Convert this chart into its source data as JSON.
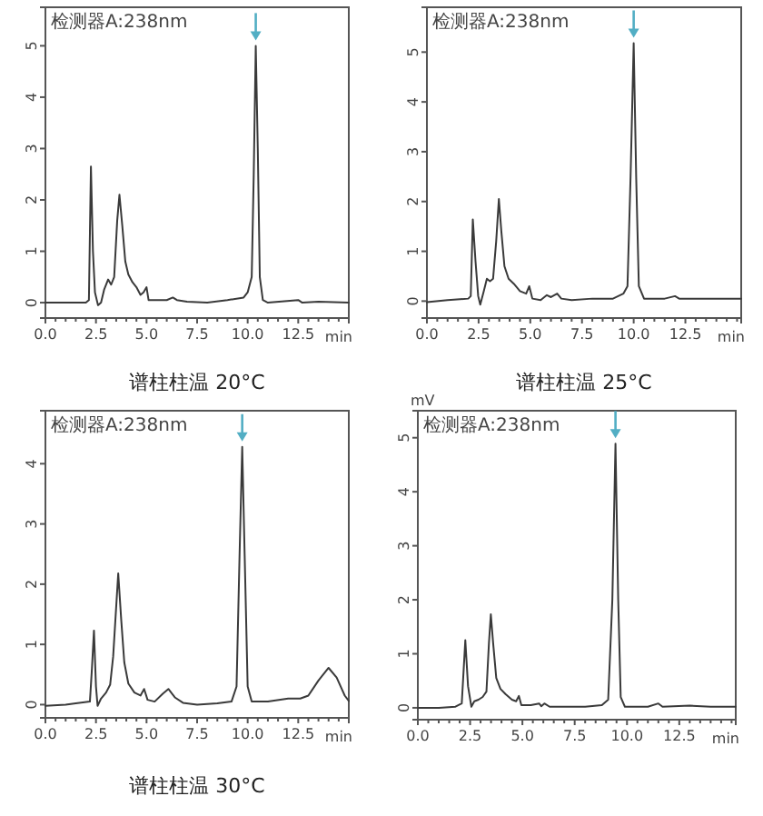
{
  "chart_data": [
    {
      "type": "line",
      "title": "谱柱柱温 20°C",
      "annotations": [
        "检测器A:238nm"
      ],
      "xlabel": "min",
      "color": "#3a3a3a",
      "xlim": [
        0,
        15
      ],
      "ylim": [
        -0.3,
        5.75
      ],
      "xticks": [
        {
          "value": 0,
          "label": "0.0"
        },
        {
          "value": 0.5,
          "label": null
        },
        {
          "value": 1,
          "label": null
        },
        {
          "value": 1.5,
          "label": null
        },
        {
          "value": 2,
          "label": null
        },
        2.5,
        {
          "value": 3,
          "label": null
        },
        {
          "value": 3.5,
          "label": null
        },
        {
          "value": 4,
          "label": null
        },
        {
          "value": 4.5,
          "label": null
        },
        {
          "value": 5,
          "label": "5.0"
        },
        {
          "value": 5.5,
          "label": null
        },
        {
          "value": 6,
          "label": null
        },
        {
          "value": 6.5,
          "label": null
        },
        {
          "value": 7,
          "label": null
        },
        7.5,
        {
          "value": 8,
          "label": null
        },
        {
          "value": 8.5,
          "label": null
        },
        {
          "value": 9,
          "label": null
        },
        {
          "value": 9.5,
          "label": null
        },
        {
          "value": 10,
          "label": "10.0"
        },
        {
          "value": 10.5,
          "label": null
        },
        {
          "value": 11,
          "label": null
        },
        {
          "value": 11.5,
          "label": null
        },
        {
          "value": 12,
          "label": null
        },
        12.5,
        {
          "value": 13,
          "label": null
        },
        {
          "value": 13.5,
          "label": null
        },
        {
          "value": 14,
          "label": null
        },
        {
          "value": 14.5,
          "label": null
        }
      ],
      "yticks": [
        0,
        1,
        2,
        3,
        4,
        5
      ],
      "x": [
        0,
        1,
        2,
        2.15,
        2.25,
        2.35,
        2.45,
        2.6,
        2.75,
        2.9,
        3.1,
        3.25,
        3.4,
        3.55,
        3.66,
        3.8,
        3.95,
        4.1,
        4.3,
        4.5,
        4.7,
        4.85,
        5,
        5.1,
        5.3,
        6,
        6.3,
        6.5,
        7,
        8,
        9,
        9.8,
        10,
        10.2,
        10.3,
        10.4,
        10.5,
        10.6,
        10.75,
        11,
        12.5,
        12.7,
        13.5,
        15
      ],
      "values": [
        0,
        0,
        0,
        0.05,
        2.65,
        1,
        0.2,
        -0.05,
        0,
        0.25,
        0.45,
        0.35,
        0.5,
        1.6,
        2.1,
        1.5,
        0.8,
        0.55,
        0.4,
        0.3,
        0.15,
        0.2,
        0.3,
        0.05,
        0.05,
        0.05,
        0.1,
        0.05,
        0.02,
        0,
        0.05,
        0.1,
        0.2,
        0.5,
        2.5,
        5,
        3,
        0.5,
        0.05,
        0,
        0.05,
        0,
        0.02,
        0
      ]
    },
    {
      "type": "line",
      "title": "谱柱柱温 25°C",
      "annotations": [
        "检测器A:238nm"
      ],
      "xlabel": "min",
      "color": "#3a3a3a",
      "xlim": [
        0,
        15.2
      ],
      "ylim": [
        -0.34,
        5.9
      ],
      "xticks": [
        {
          "value": 0,
          "label": "0.0"
        },
        {
          "value": 0.5,
          "label": null
        },
        {
          "value": 1,
          "label": null
        },
        {
          "value": 1.5,
          "label": null
        },
        {
          "value": 2,
          "label": null
        },
        2.5,
        {
          "value": 3,
          "label": null
        },
        {
          "value": 3.5,
          "label": null
        },
        {
          "value": 4,
          "label": null
        },
        {
          "value": 4.5,
          "label": null
        },
        {
          "value": 5,
          "label": "5.0"
        },
        {
          "value": 5.5,
          "label": null
        },
        {
          "value": 6,
          "label": null
        },
        {
          "value": 6.5,
          "label": null
        },
        {
          "value": 7,
          "label": null
        },
        7.5,
        {
          "value": 8,
          "label": null
        },
        {
          "value": 8.5,
          "label": null
        },
        {
          "value": 9,
          "label": null
        },
        {
          "value": 9.5,
          "label": null
        },
        {
          "value": 10,
          "label": "10.0"
        },
        {
          "value": 10.5,
          "label": null
        },
        {
          "value": 11,
          "label": null
        },
        {
          "value": 11.5,
          "label": null
        },
        {
          "value": 12,
          "label": null
        },
        12.5,
        {
          "value": 13,
          "label": null
        },
        {
          "value": 13.5,
          "label": null
        },
        {
          "value": 14,
          "label": null
        },
        {
          "value": 14.5,
          "label": null
        },
        {
          "value": 15,
          "label": null
        }
      ],
      "yticks": [
        0,
        1,
        2,
        3,
        4,
        5
      ],
      "x": [
        0,
        1,
        2,
        2.12,
        2.22,
        2.35,
        2.48,
        2.58,
        2.75,
        2.9,
        3.05,
        3.2,
        3.35,
        3.48,
        3.6,
        3.75,
        3.95,
        4.2,
        4.5,
        4.8,
        4.95,
        5.1,
        5.5,
        5.8,
        6,
        6.3,
        6.5,
        7,
        8,
        9,
        9.5,
        9.7,
        9.85,
        10,
        10.12,
        10.25,
        10.5,
        11.5,
        12,
        12.2,
        14,
        15.2
      ],
      "values": [
        -0.02,
        0.02,
        0.05,
        0.1,
        1.64,
        0.8,
        0.1,
        -0.07,
        0.2,
        0.45,
        0.4,
        0.45,
        1.2,
        2.05,
        1.4,
        0.7,
        0.45,
        0.35,
        0.2,
        0.15,
        0.3,
        0.05,
        0.02,
        0.12,
        0.08,
        0.15,
        0.05,
        0.02,
        0.05,
        0.05,
        0.15,
        0.3,
        2.5,
        5.18,
        2.5,
        0.3,
        0.05,
        0.05,
        0.1,
        0.05,
        0.05,
        0.05
      ]
    },
    {
      "type": "line",
      "title": "谱柱柱温 30°C",
      "annotations": [
        "检测器A:238nm"
      ],
      "xlabel": "min",
      "color": "#3a3a3a",
      "xlim": [
        0,
        15
      ],
      "ylim": [
        -0.22,
        4.88
      ],
      "xticks": [
        {
          "value": 0,
          "label": "0.0"
        },
        {
          "value": 0.5,
          "label": null
        },
        {
          "value": 1,
          "label": null
        },
        {
          "value": 1.5,
          "label": null
        },
        {
          "value": 2,
          "label": null
        },
        2.5,
        {
          "value": 3,
          "label": null
        },
        {
          "value": 3.5,
          "label": null
        },
        {
          "value": 4,
          "label": null
        },
        {
          "value": 4.5,
          "label": null
        },
        {
          "value": 5,
          "label": "5.0"
        },
        {
          "value": 5.5,
          "label": null
        },
        {
          "value": 6,
          "label": null
        },
        {
          "value": 6.5,
          "label": null
        },
        {
          "value": 7,
          "label": null
        },
        7.5,
        {
          "value": 8,
          "label": null
        },
        {
          "value": 8.5,
          "label": null
        },
        {
          "value": 9,
          "label": null
        },
        {
          "value": 9.5,
          "label": null
        },
        {
          "value": 10,
          "label": "10.0"
        },
        {
          "value": 10.5,
          "label": null
        },
        {
          "value": 11,
          "label": null
        },
        {
          "value": 11.5,
          "label": null
        },
        {
          "value": 12,
          "label": null
        },
        12.5,
        {
          "value": 13,
          "label": null
        },
        {
          "value": 13.5,
          "label": null
        },
        {
          "value": 14,
          "label": null
        },
        {
          "value": 14.5,
          "label": null
        }
      ],
      "yticks": [
        0,
        1,
        2,
        3,
        4
      ],
      "x": [
        0,
        1,
        1.5,
        2.2,
        2.3,
        2.4,
        2.5,
        2.58,
        2.75,
        3,
        3.2,
        3.35,
        3.6,
        3.75,
        3.9,
        4.1,
        4.4,
        4.7,
        4.88,
        5.05,
        5.4,
        5.8,
        6.08,
        6.4,
        6.8,
        7.5,
        8.5,
        9.2,
        9.45,
        9.6,
        9.73,
        9.85,
        10,
        10.2,
        11,
        12,
        12.6,
        13,
        13.5,
        14,
        14.4,
        14.8,
        15
      ],
      "values": [
        -0.02,
        0,
        0.02,
        0.05,
        0.6,
        1.23,
        0.3,
        -0.02,
        0.1,
        0.2,
        0.33,
        0.8,
        2.18,
        1.4,
        0.7,
        0.35,
        0.2,
        0.15,
        0.26,
        0.08,
        0.05,
        0.18,
        0.26,
        0.12,
        0.03,
        0,
        0.02,
        0.05,
        0.3,
        2.5,
        4.28,
        2.5,
        0.3,
        0.05,
        0.05,
        0.1,
        0.1,
        0.15,
        0.4,
        0.61,
        0.45,
        0.15,
        0.06
      ]
    },
    {
      "type": "line",
      "annotations": [
        "检测器A:238nm"
      ],
      "xlabel": "min",
      "ylabel": "mV",
      "color": "#3a3a3a",
      "xlim": [
        0,
        15.2
      ],
      "ylim": [
        -0.22,
        5.5
      ],
      "xticks": [
        {
          "value": 0,
          "label": "0.0"
        },
        {
          "value": 0.5,
          "label": null
        },
        {
          "value": 1,
          "label": null
        },
        {
          "value": 1.5,
          "label": null
        },
        {
          "value": 2,
          "label": null
        },
        2.5,
        {
          "value": 3,
          "label": null
        },
        {
          "value": 3.5,
          "label": null
        },
        {
          "value": 4,
          "label": null
        },
        {
          "value": 4.5,
          "label": null
        },
        {
          "value": 5,
          "label": "5.0"
        },
        {
          "value": 5.5,
          "label": null
        },
        {
          "value": 6,
          "label": null
        },
        {
          "value": 6.5,
          "label": null
        },
        {
          "value": 7,
          "label": null
        },
        7.5,
        {
          "value": 8,
          "label": null
        },
        {
          "value": 8.5,
          "label": null
        },
        {
          "value": 9,
          "label": null
        },
        {
          "value": 9.5,
          "label": null
        },
        {
          "value": 10,
          "label": "10.0"
        },
        {
          "value": 10.5,
          "label": null
        },
        {
          "value": 11,
          "label": null
        },
        {
          "value": 11.5,
          "label": null
        },
        {
          "value": 12,
          "label": null
        },
        12.5,
        {
          "value": 13,
          "label": null
        },
        {
          "value": 13.5,
          "label": null
        },
        {
          "value": 14,
          "label": null
        },
        {
          "value": 14.5,
          "label": null
        },
        {
          "value": 15,
          "label": null
        }
      ],
      "yticks": [
        0,
        1,
        2,
        3,
        4,
        5
      ],
      "x": [
        0,
        1,
        1.8,
        2.1,
        2.27,
        2.4,
        2.56,
        2.7,
        2.9,
        3.1,
        3.28,
        3.4,
        3.49,
        3.6,
        3.75,
        3.95,
        4.2,
        4.5,
        4.7,
        4.83,
        4.95,
        5.4,
        5.8,
        5.9,
        6.05,
        6.3,
        7,
        8,
        8.8,
        9.1,
        9.3,
        9.45,
        9.58,
        9.7,
        9.9,
        11,
        11.5,
        11.7,
        13,
        14,
        15.2
      ],
      "values": [
        0,
        0,
        0.02,
        0.08,
        1.25,
        0.4,
        0.02,
        0.12,
        0.15,
        0.2,
        0.3,
        1.2,
        1.73,
        1.2,
        0.55,
        0.35,
        0.25,
        0.15,
        0.12,
        0.22,
        0.05,
        0.05,
        0.08,
        0.03,
        0.08,
        0.02,
        0.02,
        0.02,
        0.05,
        0.15,
        2,
        4.89,
        2,
        0.2,
        0.02,
        0.02,
        0.08,
        0.02,
        0.04,
        0.02,
        0.02
      ]
    }
  ]
}
